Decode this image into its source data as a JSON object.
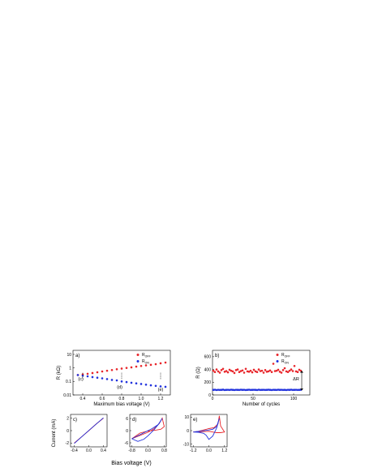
{
  "figure": {
    "x_axis_bottom_label": "Bias voltage (V)",
    "y_axis_bottom_label": "Current (mA)"
  },
  "chart_data": [
    {
      "id": "a",
      "panel_label": "a)",
      "type": "scatter",
      "xlabel": "Maximum bias voltage (V)",
      "ylabel": "R (kΩ)",
      "xlim": [
        0.3,
        1.3
      ],
      "ylim": [
        0.01,
        20
      ],
      "y_scale": "log",
      "x_ticks": [
        "0.4",
        "0.6",
        "0.8",
        "1.0",
        "1.2"
      ],
      "y_ticks": [
        "0.01",
        "0.1",
        "1",
        "10"
      ],
      "series": [
        {
          "name": "R_OFF",
          "color": "#e8262b",
          "x": [
            0.35,
            0.4,
            0.45,
            0.5,
            0.55,
            0.6,
            0.65,
            0.7,
            0.75,
            0.8,
            0.85,
            0.9,
            0.95,
            1.0,
            1.05,
            1.1,
            1.15,
            1.2,
            1.25
          ],
          "y": [
            0.3,
            0.33,
            0.37,
            0.42,
            0.48,
            0.55,
            0.62,
            0.7,
            0.8,
            0.9,
            1.0,
            1.1,
            1.25,
            1.4,
            1.55,
            1.7,
            1.9,
            2.2,
            2.5
          ]
        },
        {
          "name": "R_ON",
          "color": "#2233dd",
          "x": [
            0.35,
            0.4,
            0.45,
            0.5,
            0.55,
            0.6,
            0.65,
            0.7,
            0.75,
            0.8,
            0.85,
            0.9,
            0.95,
            1.0,
            1.05,
            1.1,
            1.15,
            1.2,
            1.25
          ],
          "y": [
            0.3,
            0.27,
            0.24,
            0.21,
            0.19,
            0.17,
            0.15,
            0.13,
            0.12,
            0.1,
            0.09,
            0.08,
            0.072,
            0.065,
            0.058,
            0.052,
            0.047,
            0.043,
            0.04
          ]
        }
      ],
      "legend": [
        {
          "label": "R",
          "sub": "OFF",
          "color": "#e8262b"
        },
        {
          "label": "R",
          "sub": "ON",
          "color": "#2233dd"
        }
      ],
      "annotations": [
        {
          "text": "(c)",
          "x": 0.38,
          "y": 0.12
        },
        {
          "text": "(d)",
          "x": 0.78,
          "y": 0.03
        },
        {
          "text": "(e)",
          "x": 1.2,
          "y": 0.02
        }
      ],
      "markers_at_x": [
        0.4,
        0.8,
        1.2
      ],
      "legend_position": "top-right"
    },
    {
      "id": "b",
      "panel_label": "b)",
      "type": "scatter",
      "xlabel": "Number of cycles",
      "ylabel": "R (Ω)",
      "xlim": [
        0,
        120
      ],
      "ylim": [
        0,
        700
      ],
      "x_ticks": [
        "0",
        "50",
        "100"
      ],
      "y_ticks": [
        "0",
        "200",
        "400",
        "600"
      ],
      "series": [
        {
          "name": "R_OFF",
          "color": "#e8262b",
          "x": [
            1,
            3,
            5,
            7,
            9,
            11,
            13,
            15,
            17,
            19,
            21,
            23,
            25,
            27,
            29,
            31,
            33,
            35,
            37,
            39,
            41,
            43,
            45,
            47,
            49,
            51,
            53,
            55,
            57,
            59,
            61,
            63,
            65,
            67,
            69,
            71,
            73,
            75,
            77,
            79,
            81,
            83,
            85,
            87,
            89,
            91,
            93,
            95,
            97,
            99,
            101,
            103,
            105,
            107,
            109
          ],
          "y": [
            380,
            360,
            400,
            370,
            350,
            390,
            410,
            365,
            375,
            355,
            395,
            380,
            370,
            345,
            390,
            400,
            360,
            375,
            385,
            350,
            410,
            370,
            365,
            380,
            355,
            395,
            370,
            360,
            400,
            375,
            380,
            350,
            390,
            365,
            370,
            385,
            360,
            490,
            375,
            380,
            395,
            365,
            350,
            390,
            420,
            370,
            360,
            380,
            400,
            375,
            455,
            370,
            360,
            395,
            380
          ]
        },
        {
          "name": "R_ON",
          "color": "#2233dd",
          "x": [
            1,
            3,
            5,
            7,
            9,
            11,
            13,
            15,
            17,
            19,
            21,
            23,
            25,
            27,
            29,
            31,
            33,
            35,
            37,
            39,
            41,
            43,
            45,
            47,
            49,
            51,
            53,
            55,
            57,
            59,
            61,
            63,
            65,
            67,
            69,
            71,
            73,
            75,
            77,
            79,
            81,
            83,
            85,
            87,
            89,
            91,
            93,
            95,
            97,
            99,
            101,
            103,
            105,
            107,
            109
          ],
          "y": [
            80,
            82,
            78,
            81,
            79,
            80,
            83,
            78,
            80,
            81,
            79,
            82,
            80,
            78,
            81,
            80,
            79,
            82,
            80,
            81,
            78,
            80,
            82,
            79,
            80,
            81,
            80,
            78,
            82,
            79,
            80,
            81,
            79,
            80,
            82,
            80,
            78,
            81,
            80,
            79,
            82,
            80,
            81,
            79,
            80,
            78,
            81,
            80,
            82,
            79,
            80,
            81,
            79,
            80,
            81
          ]
        }
      ],
      "legend": [
        {
          "label": "R",
          "sub": "OFF",
          "color": "#e8262b"
        },
        {
          "label": "R",
          "sub": "ON",
          "color": "#2233dd"
        }
      ],
      "annotations": [
        {
          "text": "ΔR",
          "x": 103,
          "y": 230
        }
      ],
      "legend_position": "top-right"
    },
    {
      "id": "c",
      "panel_label": "c)",
      "type": "line",
      "xlim": [
        -0.5,
        0.5
      ],
      "ylim": [
        -2.6,
        2.6
      ],
      "x_ticks": [
        "-0.4",
        "0.0",
        "0.4"
      ],
      "y_ticks": [
        "-2",
        "0",
        "2"
      ],
      "series": [
        {
          "name": "",
          "color": "#e8262b",
          "x": [
            -0.4,
            -0.2,
            0.0,
            0.2,
            0.4
          ],
          "y": [
            -2.0,
            -1.0,
            0.0,
            1.05,
            2.0
          ]
        },
        {
          "name": "",
          "color": "#2233dd",
          "x": [
            -0.4,
            0.0,
            0.4
          ],
          "y": [
            -2.05,
            0.02,
            2.05
          ]
        }
      ]
    },
    {
      "id": "d",
      "panel_label": "d)",
      "type": "line",
      "xlim": [
        -0.9,
        0.9
      ],
      "ylim": [
        -8,
        8
      ],
      "x_ticks": [
        "-0.8",
        "0.0",
        "0.8"
      ],
      "y_ticks": [
        "-6",
        "0",
        "6"
      ],
      "series": [
        {
          "name": "",
          "color": "#e8262b",
          "x": [
            -0.8,
            -0.6,
            -0.3,
            0.0,
            0.3,
            0.55,
            0.7,
            0.8,
            0.65,
            0.6,
            0.4,
            0.0,
            -0.4,
            -0.8
          ],
          "y": [
            -4.0,
            -3.2,
            -2.0,
            -0.8,
            1.0,
            3.5,
            6.2,
            2.0,
            0.8,
            0.6,
            0.3,
            -0.2,
            -1.2,
            -4.0
          ]
        },
        {
          "name": "",
          "color": "#2233dd",
          "x": [
            -0.8,
            -0.5,
            -0.2,
            0.0,
            0.3,
            0.55,
            0.7,
            0.5,
            0.2,
            0.0,
            -0.3,
            -0.6,
            -0.8
          ],
          "y": [
            -4.0,
            -5.3,
            -4.2,
            -2.5,
            0.5,
            3.6,
            6.0,
            3.0,
            1.0,
            0.0,
            -1.5,
            -3.0,
            -4.0
          ]
        }
      ]
    },
    {
      "id": "e",
      "panel_label": "e)",
      "type": "line",
      "xlim": [
        -1.4,
        1.4
      ],
      "ylim": [
        -12,
        12
      ],
      "x_ticks": [
        "-1.2",
        "0.0",
        "1.2"
      ],
      "y_ticks": [
        "-10",
        "0",
        "10"
      ],
      "series": [
        {
          "name": "",
          "color": "#e8262b",
          "x": [
            -1.2,
            -0.8,
            -0.4,
            0.0,
            0.4,
            0.7,
            0.8,
            0.9,
            1.2,
            0.9,
            0.6,
            0.3,
            0.0,
            -0.5,
            -1.2
          ],
          "y": [
            -1.0,
            -0.5,
            0.5,
            1.5,
            2.2,
            5.0,
            11.0,
            3.5,
            -1.0,
            -1.5,
            -1.5,
            -1.0,
            -0.5,
            -0.8,
            -1.0
          ]
        },
        {
          "name": "",
          "color": "#2233dd",
          "x": [
            -1.2,
            -0.8,
            -0.4,
            -0.2,
            0.0,
            0.3,
            0.6,
            0.8,
            0.6,
            0.3,
            0.0,
            -0.5,
            -1.2
          ],
          "y": [
            -1.0,
            -1.2,
            -2.0,
            -3.5,
            -6.5,
            -4.0,
            2.0,
            9.0,
            3.0,
            1.0,
            0.5,
            -0.2,
            -1.0
          ]
        }
      ]
    }
  ]
}
